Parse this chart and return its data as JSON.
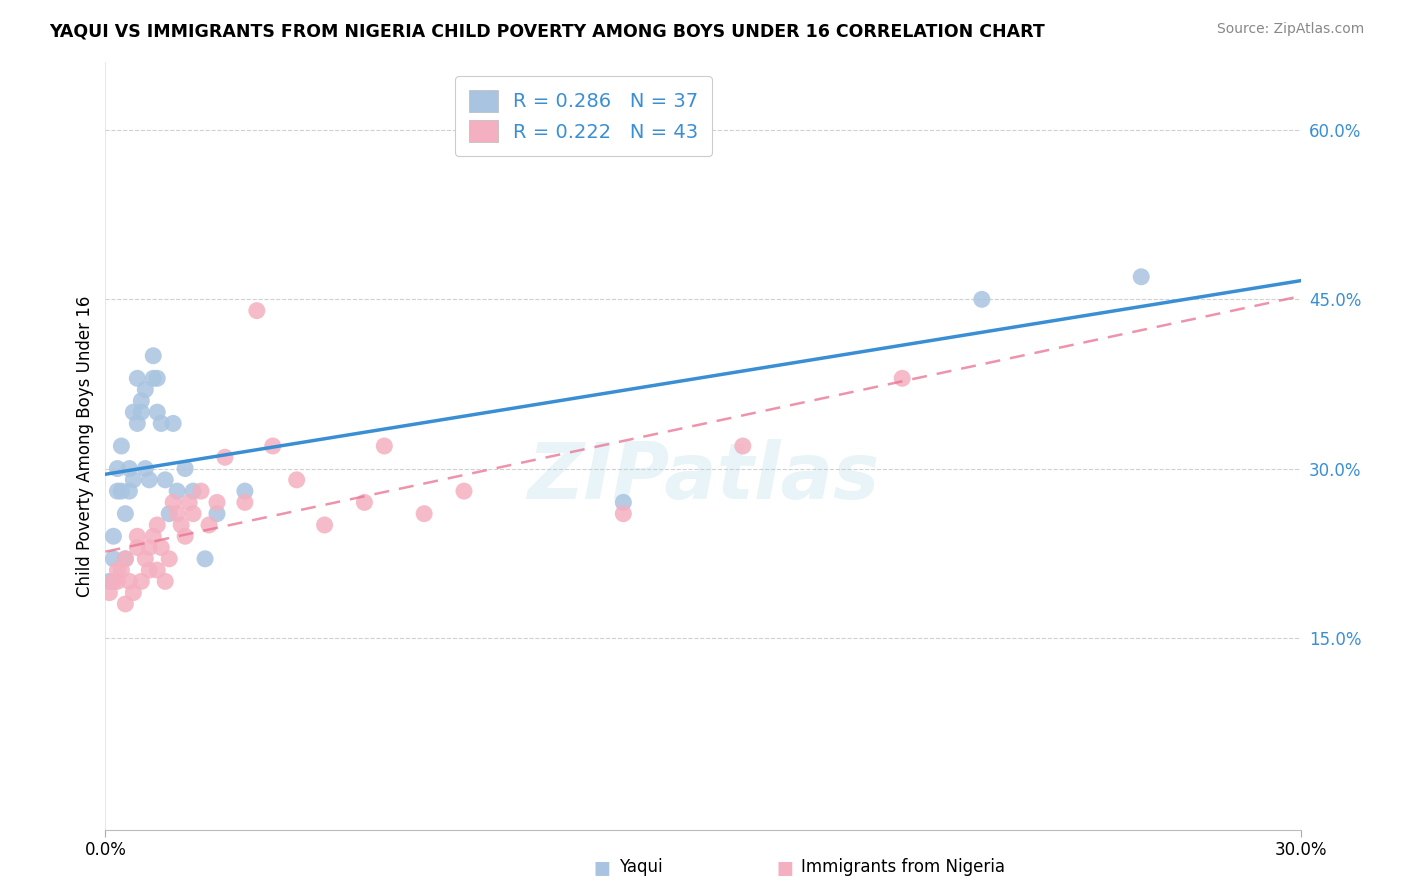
{
  "title": "YAQUI VS IMMIGRANTS FROM NIGERIA CHILD POVERTY AMONG BOYS UNDER 16 CORRELATION CHART",
  "source": "Source: ZipAtlas.com",
  "ylabel_label": "Child Poverty Among Boys Under 16",
  "right_yticks": [
    "15.0%",
    "30.0%",
    "45.0%",
    "60.0%"
  ],
  "right_ytick_vals": [
    0.15,
    0.3,
    0.45,
    0.6
  ],
  "xmin": 0.0,
  "xmax": 0.3,
  "ymin": -0.02,
  "ymax": 0.66,
  "R_yaqui": 0.286,
  "N_yaqui": 37,
  "R_nigeria": 0.222,
  "N_nigeria": 43,
  "yaqui_color": "#a8c4e0",
  "yaqui_line_color": "#3a8fd4",
  "nigeria_color": "#f4b0c0",
  "nigeria_line_color": "#e87090",
  "yaqui_x": [
    0.001,
    0.002,
    0.002,
    0.003,
    0.003,
    0.004,
    0.004,
    0.005,
    0.005,
    0.006,
    0.006,
    0.007,
    0.007,
    0.008,
    0.008,
    0.009,
    0.009,
    0.01,
    0.01,
    0.011,
    0.012,
    0.012,
    0.013,
    0.013,
    0.014,
    0.015,
    0.016,
    0.017,
    0.018,
    0.02,
    0.022,
    0.025,
    0.028,
    0.035,
    0.13,
    0.22,
    0.26
  ],
  "yaqui_y": [
    0.2,
    0.22,
    0.24,
    0.28,
    0.3,
    0.28,
    0.32,
    0.22,
    0.26,
    0.28,
    0.3,
    0.29,
    0.35,
    0.34,
    0.38,
    0.36,
    0.35,
    0.3,
    0.37,
    0.29,
    0.38,
    0.4,
    0.35,
    0.38,
    0.34,
    0.29,
    0.26,
    0.34,
    0.28,
    0.3,
    0.28,
    0.22,
    0.26,
    0.28,
    0.27,
    0.45,
    0.47
  ],
  "nigeria_x": [
    0.001,
    0.002,
    0.003,
    0.003,
    0.004,
    0.005,
    0.005,
    0.006,
    0.007,
    0.008,
    0.008,
    0.009,
    0.01,
    0.011,
    0.011,
    0.012,
    0.013,
    0.013,
    0.014,
    0.015,
    0.016,
    0.017,
    0.018,
    0.019,
    0.02,
    0.021,
    0.022,
    0.024,
    0.026,
    0.028,
    0.03,
    0.035,
    0.038,
    0.042,
    0.048,
    0.055,
    0.065,
    0.07,
    0.08,
    0.09,
    0.13,
    0.16,
    0.2
  ],
  "nigeria_y": [
    0.19,
    0.2,
    0.2,
    0.21,
    0.21,
    0.18,
    0.22,
    0.2,
    0.19,
    0.23,
    0.24,
    0.2,
    0.22,
    0.21,
    0.23,
    0.24,
    0.21,
    0.25,
    0.23,
    0.2,
    0.22,
    0.27,
    0.26,
    0.25,
    0.24,
    0.27,
    0.26,
    0.28,
    0.25,
    0.27,
    0.31,
    0.27,
    0.44,
    0.32,
    0.29,
    0.25,
    0.27,
    0.32,
    0.26,
    0.28,
    0.26,
    0.32,
    0.38
  ],
  "watermark": "ZIPatlas",
  "background_color": "#ffffff",
  "grid_color": "#d0d0d0",
  "bottom_legend_labels": [
    "Yaqui",
    "Immigrants from Nigeria"
  ]
}
